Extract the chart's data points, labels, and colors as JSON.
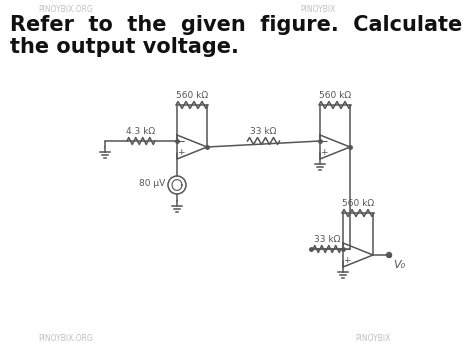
{
  "title_line1": "Refer  to  the  given  figure.  Calculate",
  "title_line2": "the output voltage.",
  "title_fontsize": 15,
  "title_fontweight": "bold",
  "bg_color": "#ffffff",
  "circuit_color": "#555555",
  "text_color": "#555555",
  "watermark_top_left": "PINOYBIX.ORG",
  "watermark_top_right": "PINOYBIX",
  "watermark_bot_left": "PINOYBIX.ORG",
  "watermark_bot_right": "PINOYBIX",
  "r1_label": "4.3 kΩ",
  "r2_label": "560 kΩ",
  "r3_label": "33 kΩ",
  "r4_label": "560 kΩ",
  "r5_label": "560 kΩ",
  "r6_label": "33 kΩ",
  "vs_label": "80 μV",
  "vo_label": "V₀",
  "font_size_labels": 6.5,
  "lw": 1.1
}
